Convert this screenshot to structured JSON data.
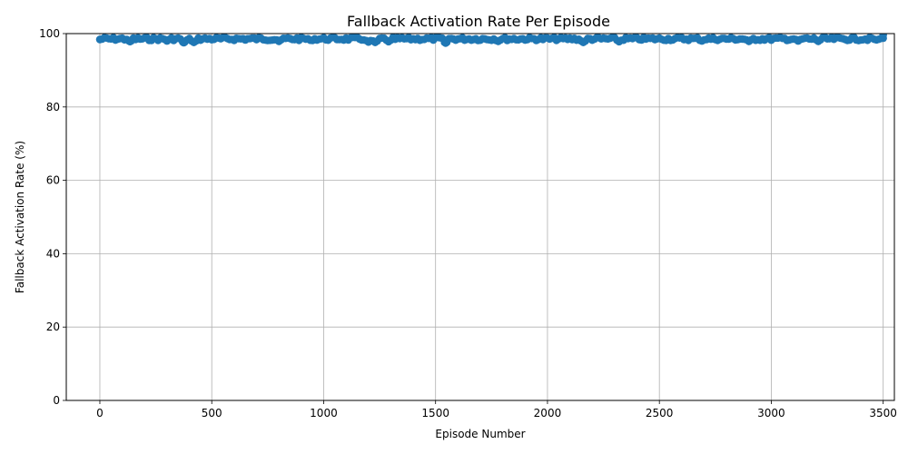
{
  "chart_data": {
    "type": "scatter",
    "title": "Fallback Activation Rate Per Episode",
    "xlabel": "Episode Number",
    "ylabel": "Fallback Activation Rate (%)",
    "xlim": [
      -150,
      3550
    ],
    "ylim": [
      0,
      100
    ],
    "xticks": [
      0,
      500,
      1000,
      1500,
      2000,
      2500,
      3000,
      3500
    ],
    "yticks": [
      0,
      20,
      40,
      60,
      80,
      100
    ],
    "grid": true,
    "legend": "none",
    "series": [
      {
        "color": "#1f77b4",
        "marker": "circle",
        "connected": true,
        "x_range": [
          0,
          3500
        ],
        "baseline": 99.0,
        "dips": [
          {
            "x": 0,
            "y": 98.4
          },
          {
            "x": 135,
            "y": 97.8
          },
          {
            "x": 300,
            "y": 98.0
          },
          {
            "x": 375,
            "y": 97.5
          },
          {
            "x": 420,
            "y": 97.6
          },
          {
            "x": 800,
            "y": 97.9
          },
          {
            "x": 940,
            "y": 98.2
          },
          {
            "x": 1200,
            "y": 97.7
          },
          {
            "x": 1230,
            "y": 97.6
          },
          {
            "x": 1290,
            "y": 97.8
          },
          {
            "x": 1545,
            "y": 97.4
          },
          {
            "x": 1780,
            "y": 97.9
          },
          {
            "x": 2160,
            "y": 97.6
          },
          {
            "x": 2320,
            "y": 97.8
          },
          {
            "x": 2690,
            "y": 98.0
          },
          {
            "x": 2900,
            "y": 97.9
          },
          {
            "x": 3120,
            "y": 98.0
          },
          {
            "x": 3210,
            "y": 97.9
          },
          {
            "x": 3470,
            "y": 98.3
          },
          {
            "x": 3500,
            "y": 99.6
          }
        ]
      }
    ]
  }
}
